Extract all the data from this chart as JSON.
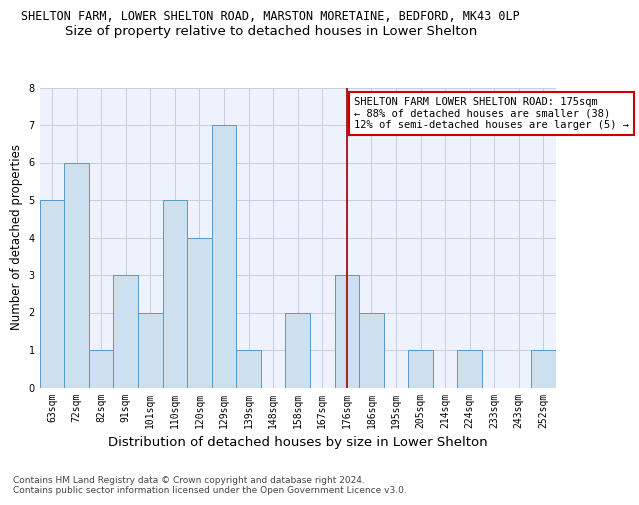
{
  "title": "SHELTON FARM, LOWER SHELTON ROAD, MARSTON MORETAINE, BEDFORD, MK43 0LP",
  "subtitle": "Size of property relative to detached houses in Lower Shelton",
  "xlabel": "Distribution of detached houses by size in Lower Shelton",
  "ylabel": "Number of detached properties",
  "categories": [
    "63sqm",
    "72sqm",
    "82sqm",
    "91sqm",
    "101sqm",
    "110sqm",
    "120sqm",
    "129sqm",
    "139sqm",
    "148sqm",
    "158sqm",
    "167sqm",
    "176sqm",
    "186sqm",
    "195sqm",
    "205sqm",
    "214sqm",
    "224sqm",
    "233sqm",
    "243sqm",
    "252sqm"
  ],
  "values": [
    5,
    6,
    1,
    3,
    2,
    5,
    4,
    7,
    1,
    0,
    2,
    0,
    3,
    2,
    0,
    1,
    0,
    1,
    0,
    0,
    1
  ],
  "bar_color": "#cce0f0",
  "bar_edge_color": "#5599cc",
  "highlight_index": 12,
  "highlight_line_color": "#990000",
  "ylim": [
    0,
    8
  ],
  "yticks": [
    0,
    1,
    2,
    3,
    4,
    5,
    6,
    7,
    8
  ],
  "annotation_text": "SHELTON FARM LOWER SHELTON ROAD: 175sqm\n← 88% of detached houses are smaller (38)\n12% of semi-detached houses are larger (5) →",
  "annotation_box_color": "#ffffff",
  "annotation_box_edge": "#cc0000",
  "footer": "Contains HM Land Registry data © Crown copyright and database right 2024.\nContains public sector information licensed under the Open Government Licence v3.0.",
  "bg_color": "#eef2fc",
  "grid_color": "#c0c8e0",
  "title_fontsize": 8.5,
  "subtitle_fontsize": 9.5,
  "xlabel_fontsize": 9.5,
  "ylabel_fontsize": 8.5,
  "tick_fontsize": 7,
  "annotation_fontsize": 7.5,
  "footer_fontsize": 6.5
}
